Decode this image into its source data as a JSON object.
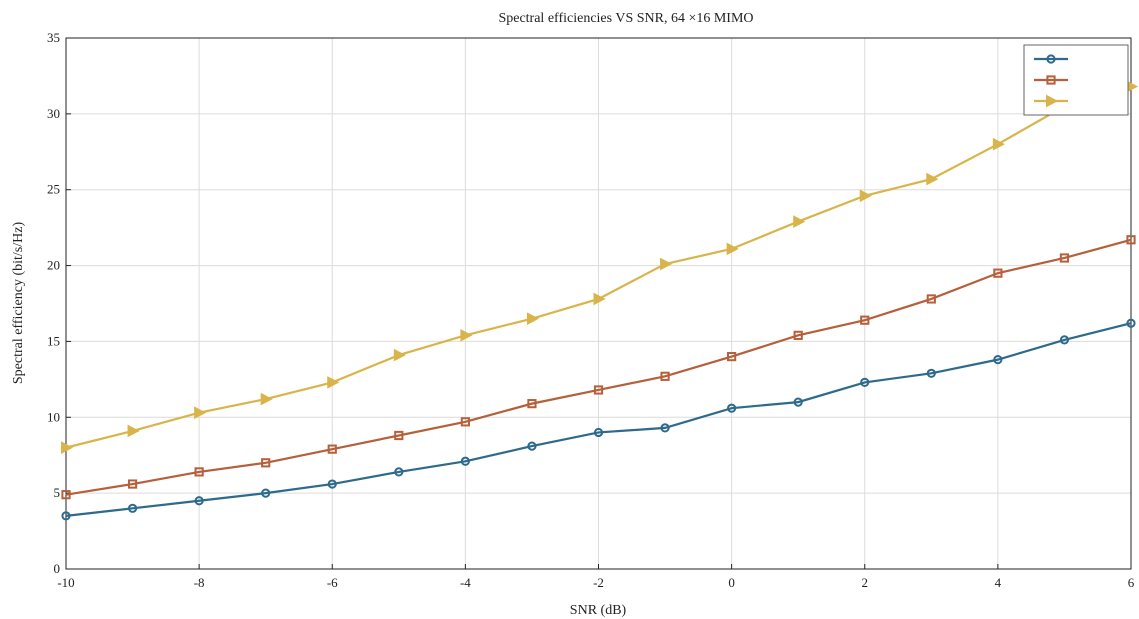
{
  "chart_data": {
    "type": "line",
    "title": "Spectral efficiencies VS SNR, 64 ×16 MIMO",
    "xlabel": "SNR (dB)",
    "ylabel": "Spectral efficiency (bit/s/Hz)",
    "xlim": [
      -10,
      6
    ],
    "ylim": [
      0,
      35
    ],
    "xticks": [
      -10,
      -8,
      -6,
      -4,
      -2,
      0,
      2,
      4,
      6
    ],
    "yticks": [
      0,
      5,
      10,
      15,
      20,
      25,
      30,
      35
    ],
    "grid": true,
    "legend_position": "top-right",
    "x": [
      -10,
      -9,
      -8,
      -7,
      -6,
      -5,
      -4,
      -3,
      -2,
      -1,
      0,
      1,
      2,
      3,
      4,
      5,
      6
    ],
    "series": [
      {
        "color": "#2d6a8c",
        "marker": "circle",
        "values": [
          3.5,
          4.0,
          4.5,
          5.0,
          5.6,
          6.4,
          7.1,
          8.1,
          9.0,
          9.3,
          10.6,
          11.0,
          12.3,
          12.9,
          13.8,
          15.1,
          16.2
        ]
      },
      {
        "color": "#b5603a",
        "marker": "square",
        "values": [
          4.9,
          5.6,
          6.4,
          7.0,
          7.9,
          8.8,
          9.7,
          10.9,
          11.8,
          12.7,
          14.0,
          15.4,
          16.4,
          17.8,
          19.5,
          20.5,
          21.7
        ]
      },
      {
        "color": "#d9b44a",
        "marker": "triangle-right",
        "values": [
          8.0,
          9.1,
          10.3,
          11.2,
          12.3,
          14.1,
          15.4,
          16.5,
          17.8,
          20.1,
          21.1,
          22.9,
          24.6,
          25.7,
          28.0,
          30.5,
          31.8
        ]
      }
    ]
  }
}
